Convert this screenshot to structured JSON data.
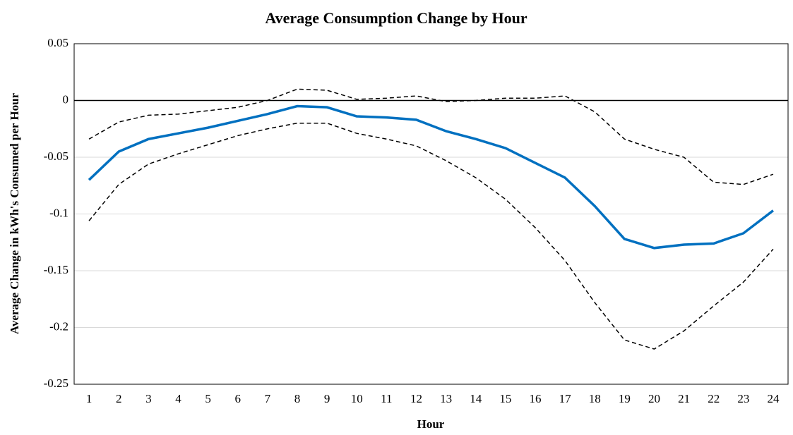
{
  "chart_data": {
    "type": "line",
    "title": "Average Consumption Change by Hour",
    "x_label": "Hour",
    "y_label": "Average Change in kWh's Consumed per Hour",
    "categories": [
      "1",
      "2",
      "3",
      "4",
      "5",
      "6",
      "7",
      "8",
      "9",
      "10",
      "11",
      "12",
      "13",
      "14",
      "15",
      "16",
      "17",
      "18",
      "19",
      "20",
      "21",
      "22",
      "23",
      "24"
    ],
    "series": [
      {
        "color": "#000000",
        "line_style": "dashed",
        "values": [
          -0.034,
          -0.019,
          -0.013,
          -0.012,
          -0.009,
          -0.006,
          0,
          0.01,
          0.009,
          0.001,
          0.002,
          0.004,
          -0.001,
          0,
          0.002,
          0.002,
          0.004,
          -0.01,
          -0.034,
          -0.043,
          -0.05,
          -0.072,
          -0.074,
          -0.065
        ]
      },
      {
        "color": "#0070c0",
        "line_style": "solid",
        "values": [
          -0.07,
          -0.045,
          -0.034,
          -0.029,
          -0.024,
          -0.018,
          -0.012,
          -0.005,
          -0.006,
          -0.014,
          -0.015,
          -0.017,
          -0.027,
          -0.034,
          -0.042,
          -0.055,
          -0.068,
          -0.093,
          -0.122,
          -0.13,
          -0.127,
          -0.126,
          -0.117,
          -0.097
        ]
      },
      {
        "color": "#000000",
        "line_style": "dashed",
        "values": [
          -0.106,
          -0.074,
          -0.056,
          -0.047,
          -0.039,
          -0.031,
          -0.025,
          -0.02,
          -0.02,
          -0.029,
          -0.034,
          -0.04,
          -0.053,
          -0.068,
          -0.087,
          -0.112,
          -0.141,
          -0.178,
          -0.211,
          -0.219,
          -0.203,
          -0.181,
          -0.16,
          -0.131
        ]
      }
    ],
    "ylim": [
      -0.25,
      0.05
    ],
    "yticks": [
      0.05,
      0,
      -0.05,
      -0.1,
      -0.15,
      -0.2,
      -0.25
    ],
    "grid": true
  }
}
